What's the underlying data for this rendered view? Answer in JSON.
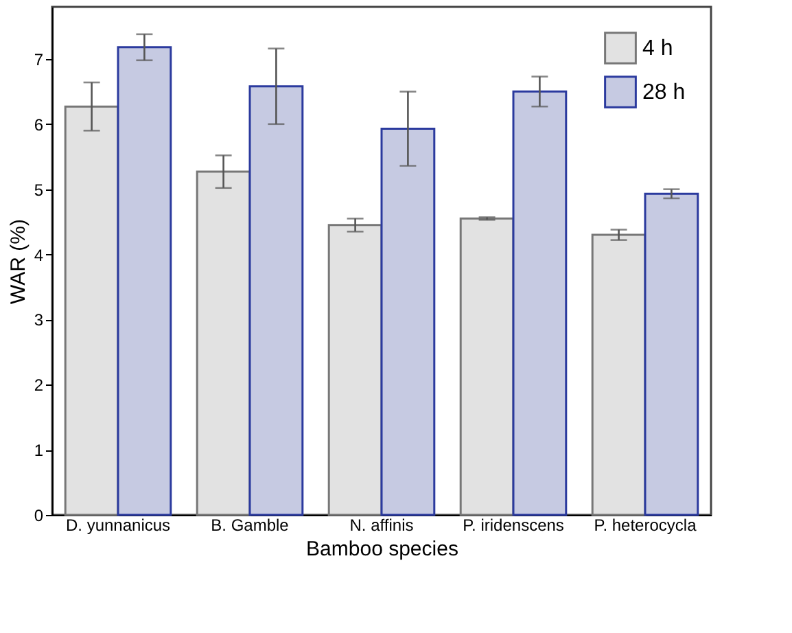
{
  "chart_data": {
    "type": "bar",
    "xlabel": "Bamboo species",
    "ylabel": "WAR (%)",
    "categories": [
      "D. yunnanicus",
      "B. Gamble",
      "N. affinis",
      "P. iridenscens",
      "P. heterocycla"
    ],
    "series": [
      {
        "name": "4 h",
        "color": "#e2e2e2",
        "values": [
          6.27,
          5.27,
          4.45,
          4.55,
          4.3
        ],
        "errors": [
          0.37,
          0.25,
          0.1,
          0.02,
          0.08
        ]
      },
      {
        "name": "28 h",
        "color": "#c6cae2",
        "values": [
          7.18,
          6.58,
          5.93,
          6.5,
          4.93
        ],
        "errors": [
          0.2,
          0.58,
          0.57,
          0.23,
          0.07
        ]
      }
    ],
    "ylim": [
      0,
      7.8
    ],
    "yticks": [
      0,
      1,
      2,
      3,
      4,
      5,
      6,
      7
    ],
    "grid": false,
    "legend": "top right"
  }
}
